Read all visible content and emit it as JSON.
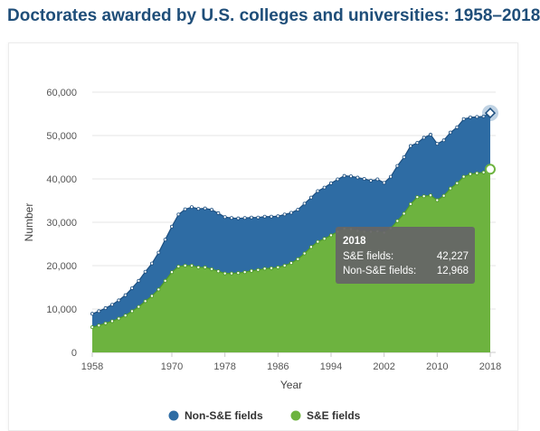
{
  "title": "Doctorates awarded by U.S. colleges and universities: 1958–2018",
  "colors": {
    "non_se": "#2e6ca4",
    "se": "#6db33f",
    "title": "#1f4e79",
    "tooltip_bg": "#666666"
  },
  "chart_data": {
    "type": "area",
    "stacked": true,
    "xlabel": "Year",
    "ylabel": "Number",
    "ylim": [
      0,
      60000
    ],
    "yticks": [
      "0",
      "10,000",
      "20,000",
      "30,000",
      "40,000",
      "50,000",
      "60,000"
    ],
    "xticks": [
      "1958",
      "1970",
      "1978",
      "1986",
      "1994",
      "2002",
      "2010",
      "2018"
    ],
    "legend_position": "bottom-center",
    "grid": true,
    "x": [
      1958,
      1959,
      1960,
      1961,
      1962,
      1963,
      1964,
      1965,
      1966,
      1967,
      1968,
      1969,
      1970,
      1971,
      1972,
      1973,
      1974,
      1975,
      1976,
      1977,
      1978,
      1979,
      1980,
      1981,
      1982,
      1983,
      1984,
      1985,
      1986,
      1987,
      1988,
      1989,
      1990,
      1991,
      1992,
      1993,
      1994,
      1995,
      1996,
      1997,
      1998,
      1999,
      2000,
      2001,
      2002,
      2003,
      2004,
      2005,
      2006,
      2007,
      2008,
      2009,
      2010,
      2011,
      2012,
      2013,
      2014,
      2015,
      2016,
      2017,
      2018
    ],
    "series": [
      {
        "name": "Non-S&E fields",
        "values": [
          3100,
          3300,
          3500,
          3800,
          4200,
          4700,
          5300,
          6000,
          6800,
          7500,
          8500,
          9500,
          10500,
          12000,
          13000,
          13500,
          13500,
          13600,
          13700,
          13400,
          13000,
          12800,
          12600,
          12500,
          12300,
          12100,
          12000,
          11900,
          11800,
          11800,
          11600,
          11400,
          11500,
          11400,
          11700,
          11800,
          12000,
          12100,
          12200,
          12200,
          12300,
          12200,
          11800,
          12000,
          11500,
          11900,
          12700,
          13000,
          13400,
          12500,
          13500,
          14000,
          13000,
          12800,
          12900,
          12900,
          13300,
          13100,
          13000,
          12900,
          12968
        ]
      },
      {
        "name": "S&E fields",
        "values": [
          5800,
          6200,
          6700,
          7200,
          7800,
          8500,
          9500,
          10500,
          11800,
          13000,
          14500,
          16500,
          18500,
          19800,
          20000,
          20000,
          19600,
          19600,
          19200,
          18700,
          18200,
          18200,
          18300,
          18500,
          18800,
          19000,
          19300,
          19400,
          19600,
          20000,
          20600,
          21500,
          22800,
          24300,
          25500,
          26200,
          27000,
          27800,
          28500,
          28400,
          28000,
          27800,
          27800,
          27900,
          27600,
          28600,
          30300,
          32000,
          34200,
          35800,
          36000,
          36200,
          35100,
          36100,
          37800,
          39000,
          40500,
          41100,
          41300,
          41500,
          42227
        ]
      }
    ],
    "tooltip": {
      "year": "2018",
      "se_label": "S&E fields:",
      "se_value": "42,227",
      "non_se_label": "Non-S&E fields:",
      "non_se_value": "12,968"
    }
  }
}
